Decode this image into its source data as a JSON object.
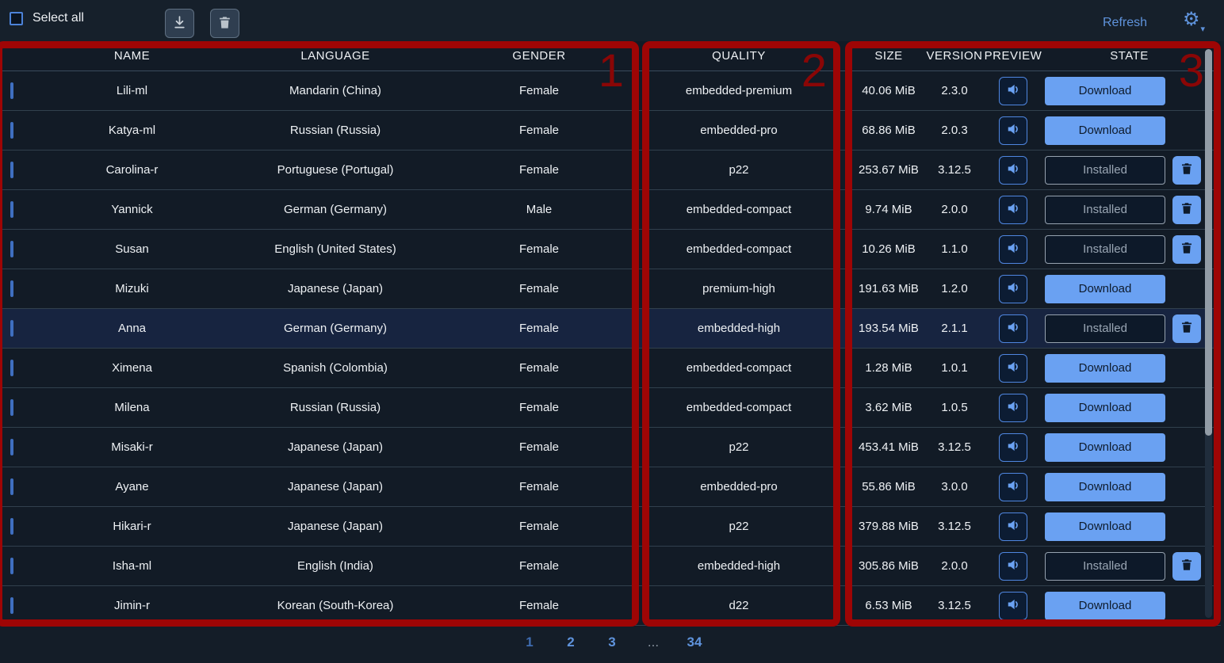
{
  "topbar": {
    "select_all_label": "Select all",
    "download_selected_icon": "download-tray-icon",
    "delete_selected_icon": "trash-icon",
    "refresh_label": "Refresh",
    "settings_icon": "gear-icon"
  },
  "table": {
    "columns": [
      "NAME",
      "LANGUAGE",
      "GENDER",
      "QUALITY",
      "SIZE",
      "VERSION",
      "PREVIEW",
      "STATE"
    ],
    "state_labels": {
      "download": "Download",
      "installed": "Installed"
    },
    "preview_icon": "speaker-icon",
    "delete_row_icon": "trash-icon",
    "rows": [
      {
        "name": "Lili-ml",
        "language": "Mandarin (China)",
        "gender": "Female",
        "quality": "embedded-premium",
        "size": "40.06 MiB",
        "version": "2.3.0",
        "state": "download",
        "highlighted": false
      },
      {
        "name": "Katya-ml",
        "language": "Russian (Russia)",
        "gender": "Female",
        "quality": "embedded-pro",
        "size": "68.86 MiB",
        "version": "2.0.3",
        "state": "download",
        "highlighted": false
      },
      {
        "name": "Carolina-r",
        "language": "Portuguese (Portugal)",
        "gender": "Female",
        "quality": "p22",
        "size": "253.67 MiB",
        "version": "3.12.5",
        "state": "installed",
        "highlighted": false
      },
      {
        "name": "Yannick",
        "language": "German (Germany)",
        "gender": "Male",
        "quality": "embedded-compact",
        "size": "9.74 MiB",
        "version": "2.0.0",
        "state": "installed",
        "highlighted": false
      },
      {
        "name": "Susan",
        "language": "English (United States)",
        "gender": "Female",
        "quality": "embedded-compact",
        "size": "10.26 MiB",
        "version": "1.1.0",
        "state": "installed",
        "highlighted": false
      },
      {
        "name": "Mizuki",
        "language": "Japanese (Japan)",
        "gender": "Female",
        "quality": "premium-high",
        "size": "191.63 MiB",
        "version": "1.2.0",
        "state": "download",
        "highlighted": false
      },
      {
        "name": "Anna",
        "language": "German (Germany)",
        "gender": "Female",
        "quality": "embedded-high",
        "size": "193.54 MiB",
        "version": "2.1.1",
        "state": "installed",
        "highlighted": true
      },
      {
        "name": "Ximena",
        "language": "Spanish (Colombia)",
        "gender": "Female",
        "quality": "embedded-compact",
        "size": "1.28 MiB",
        "version": "1.0.1",
        "state": "download",
        "highlighted": false
      },
      {
        "name": "Milena",
        "language": "Russian (Russia)",
        "gender": "Female",
        "quality": "embedded-compact",
        "size": "3.62 MiB",
        "version": "1.0.5",
        "state": "download",
        "highlighted": false
      },
      {
        "name": "Misaki-r",
        "language": "Japanese (Japan)",
        "gender": "Female",
        "quality": "p22",
        "size": "453.41 MiB",
        "version": "3.12.5",
        "state": "download",
        "highlighted": false
      },
      {
        "name": "Ayane",
        "language": "Japanese (Japan)",
        "gender": "Female",
        "quality": "embedded-pro",
        "size": "55.86 MiB",
        "version": "3.0.0",
        "state": "download",
        "highlighted": false
      },
      {
        "name": "Hikari-r",
        "language": "Japanese (Japan)",
        "gender": "Female",
        "quality": "p22",
        "size": "379.88 MiB",
        "version": "3.12.5",
        "state": "download",
        "highlighted": false
      },
      {
        "name": "Isha-ml",
        "language": "English (India)",
        "gender": "Female",
        "quality": "embedded-high",
        "size": "305.86 MiB",
        "version": "2.0.0",
        "state": "installed",
        "highlighted": false
      },
      {
        "name": "Jimin-r",
        "language": "Korean (South-Korea)",
        "gender": "Female",
        "quality": "d22",
        "size": "6.53 MiB",
        "version": "3.12.5",
        "state": "download",
        "highlighted": false
      }
    ]
  },
  "pagination": {
    "current": "1",
    "items": [
      "1",
      "2",
      "3",
      "...",
      "34"
    ]
  },
  "annotations": [
    {
      "label": "1"
    },
    {
      "label": "2"
    },
    {
      "label": "3"
    }
  ],
  "colors": {
    "background": "#141d28",
    "accent_blue": "#5f93dc",
    "button_blue": "#6aa1f2",
    "button_text_dark": "#0e1b2c",
    "row_highlight": "#172440",
    "annotation_red": "#9e0505",
    "header_text": "#93a0ae",
    "installed_text": "#9aa6b4",
    "scroll_thumb": "#929ca6"
  }
}
